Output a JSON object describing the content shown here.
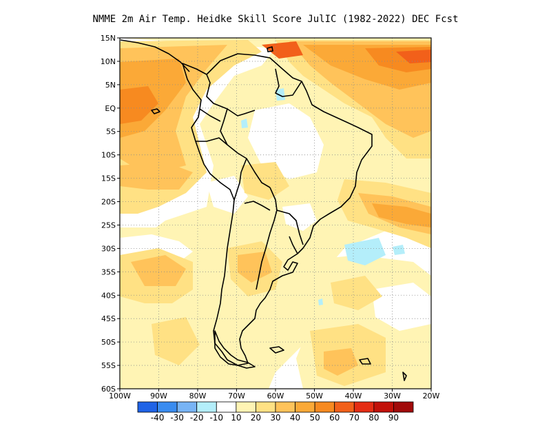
{
  "title": "NMME  2m Air Temp. Heidke Skill Score JulIC (1982-2022) DEC Fcst",
  "lat_labels": [
    "15N",
    "10N",
    "5N",
    "EQ",
    "5S",
    "10S",
    "15S",
    "20S",
    "25S",
    "30S",
    "35S",
    "40S",
    "45S",
    "50S",
    "55S",
    "60S"
  ],
  "lon_labels": [
    "100W",
    "90W",
    "80W",
    "70W",
    "60W",
    "50W",
    "40W",
    "30W",
    "20W"
  ],
  "colorbar": {
    "colors": [
      "#1f63e6",
      "#3a8cf0",
      "#78b4f5",
      "#b4eefa",
      "#ffffff",
      "#fff4b4",
      "#ffe184",
      "#ffc35a",
      "#fba937",
      "#f78a20",
      "#f2601a",
      "#e52d14",
      "#c21109",
      "#a10a0a"
    ],
    "labels": [
      "-40",
      "-30",
      "-20",
      "-10",
      "10",
      "20",
      "30",
      "40",
      "50",
      "60",
      "70",
      "80",
      "90"
    ]
  },
  "palette": {
    "l1": "#fff4b4",
    "l2": "#ffe184",
    "l3": "#ffc35a",
    "l4": "#fba937",
    "l5": "#f78a20",
    "l6": "#f2601a",
    "n1": "#b4eefa",
    "frame": "#000000"
  }
}
